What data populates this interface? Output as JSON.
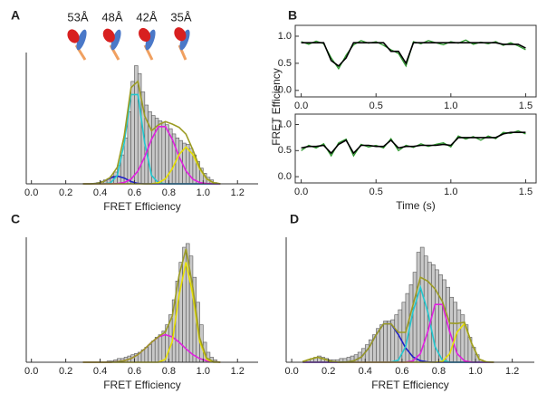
{
  "chart_data": [
    {
      "type": "histogram",
      "panel": "A",
      "xlabel": "FRET Efficiency",
      "annotations": [
        "53Å",
        "48Å",
        "42Å",
        "35Å"
      ],
      "xlim": [
        -0.03,
        1.32
      ],
      "xticks": [
        {
          "value": 0,
          "label": "0.0"
        },
        0.2,
        0.4,
        0.6,
        0.8,
        {
          "value": 1,
          "label": "1.0"
        },
        1.2
      ],
      "ylim": [
        0,
        100
      ],
      "bar_color": "#c8c8c8",
      "bins": [
        0.38,
        0.4,
        0.42,
        0.44,
        0.46,
        0.48,
        0.5,
        0.52,
        0.54,
        0.56,
        0.58,
        0.6,
        0.62,
        0.64,
        0.66,
        0.68,
        0.7,
        0.72,
        0.74,
        0.76,
        0.78,
        0.8,
        0.82,
        0.84,
        0.86,
        0.88,
        0.9,
        0.92,
        0.94,
        0.96,
        0.98,
        1,
        1.02,
        1.04,
        1.06,
        1.08
      ],
      "counts": [
        1,
        2,
        3,
        4,
        6,
        9,
        14,
        22,
        35,
        55,
        78,
        90,
        84,
        70,
        60,
        55,
        52,
        50,
        48,
        47,
        45,
        42,
        38,
        35,
        33,
        31,
        30,
        27,
        22,
        17,
        12,
        8,
        5,
        3,
        1
      ],
      "fit_x": [
        0.3,
        0.34,
        0.38,
        0.42,
        0.46,
        0.5,
        0.54,
        0.58,
        0.62,
        0.66,
        0.7,
        0.74,
        0.78,
        0.82,
        0.86,
        0.9,
        0.94,
        0.98,
        1.02,
        1.06,
        1.1
      ],
      "series": [
        {
          "color": "#1f1fc8",
          "values": [
            0,
            0,
            0.3,
            1.7,
            4.4,
            6,
            4.4,
            1.7,
            0.3,
            0,
            0,
            0,
            0,
            0,
            0,
            0,
            0,
            0,
            0,
            0,
            0
          ]
        },
        {
          "color": "#22c8d0",
          "values": [
            0,
            0,
            0,
            0,
            0.6,
            6.4,
            31,
            68,
            68,
            31,
            6.4,
            0.6,
            0,
            0,
            0,
            0,
            0,
            0,
            0,
            0,
            0
          ]
        },
        {
          "color": "#e020e0",
          "values": [
            0,
            0,
            0,
            0,
            0,
            0.2,
            1,
            3.6,
            9.8,
            20.6,
            34,
            43.6,
            43.6,
            34,
            20.6,
            9.8,
            3.6,
            1,
            0.2,
            0,
            0
          ]
        },
        {
          "color": "#e8e000",
          "values": [
            0,
            0,
            0,
            0,
            0,
            0,
            0,
            0,
            0,
            0,
            0.1,
            0.8,
            3.8,
            11.5,
            22.4,
            28,
            22.4,
            11.5,
            3.8,
            0.8,
            0.1
          ]
        },
        {
          "color": "#9c9c24",
          "values": [
            0,
            0,
            0.3,
            1.7,
            5,
            12.6,
            36.4,
            73.3,
            78.1,
            51.6,
            40.5,
            45,
            47.4,
            45.5,
            43,
            37.8,
            26,
            12.5,
            4,
            0.8,
            0.1
          ]
        }
      ]
    },
    {
      "type": "line",
      "panel": "B",
      "xlim": [
        -0.04,
        1.57
      ],
      "xticks": [
        {
          "value": 0,
          "label": "0.0"
        },
        0.5,
        {
          "value": 1,
          "label": "1.0"
        },
        1.5
      ],
      "ylim": [
        -0.12,
        1.2
      ],
      "yticks": [
        {
          "value": 0,
          "label": "0.0"
        },
        0.5,
        {
          "value": 1,
          "label": "1.0"
        }
      ],
      "x": [
        0,
        0.05,
        0.1,
        0.15,
        0.2,
        0.25,
        0.3,
        0.35,
        0.4,
        0.45,
        0.5,
        0.55,
        0.6,
        0.65,
        0.7,
        0.75,
        0.8,
        0.85,
        0.9,
        0.95,
        1,
        1.05,
        1.1,
        1.15,
        1.2,
        1.25,
        1.3,
        1.35,
        1.4,
        1.45,
        1.5
      ],
      "series": [
        {
          "color": "#2e9a2e",
          "values": [
            0.9,
            0.85,
            0.91,
            0.86,
            0.6,
            0.4,
            0.65,
            0.84,
            0.92,
            0.87,
            0.9,
            0.83,
            0.75,
            0.68,
            0.45,
            0.9,
            0.86,
            0.92,
            0.88,
            0.84,
            0.9,
            0.87,
            0.93,
            0.85,
            0.89,
            0.86,
            0.9,
            0.83,
            0.88,
            0.82,
            0.75
          ]
        },
        {
          "color": "#000000",
          "values": [
            0.88,
            0.88,
            0.88,
            0.88,
            0.55,
            0.45,
            0.6,
            0.88,
            0.88,
            0.88,
            0.88,
            0.88,
            0.72,
            0.72,
            0.5,
            0.88,
            0.88,
            0.88,
            0.88,
            0.88,
            0.88,
            0.88,
            0.88,
            0.88,
            0.88,
            0.88,
            0.88,
            0.85,
            0.85,
            0.85,
            0.78
          ]
        }
      ]
    },
    {
      "type": "line",
      "ylabel": "FRET Efficiency",
      "xlabel": "Time (s)",
      "xlim": [
        -0.04,
        1.57
      ],
      "xticks": [
        {
          "value": 0,
          "label": "0.0"
        },
        0.5,
        {
          "value": 1,
          "label": "1.0"
        },
        1.5
      ],
      "ylim": [
        -0.12,
        1.2
      ],
      "yticks": [
        {
          "value": 0,
          "label": "0.0"
        },
        0.5,
        {
          "value": 1,
          "label": "1.0"
        }
      ],
      "x": [
        0,
        0.05,
        0.1,
        0.15,
        0.2,
        0.25,
        0.3,
        0.35,
        0.4,
        0.45,
        0.5,
        0.55,
        0.6,
        0.65,
        0.7,
        0.75,
        0.8,
        0.85,
        0.9,
        0.95,
        1,
        1.05,
        1.1,
        1.15,
        1.2,
        1.25,
        1.3,
        1.35,
        1.4,
        1.45,
        1.5
      ],
      "series": [
        {
          "color": "#2e9a2e",
          "values": [
            0.5,
            0.6,
            0.55,
            0.63,
            0.4,
            0.65,
            0.72,
            0.4,
            0.62,
            0.57,
            0.6,
            0.55,
            0.73,
            0.5,
            0.6,
            0.56,
            0.63,
            0.58,
            0.62,
            0.65,
            0.57,
            0.78,
            0.72,
            0.77,
            0.7,
            0.78,
            0.73,
            0.85,
            0.83,
            0.88,
            0.82
          ]
        },
        {
          "color": "#000000",
          "values": [
            0.55,
            0.58,
            0.58,
            0.6,
            0.45,
            0.62,
            0.7,
            0.45,
            0.6,
            0.6,
            0.58,
            0.58,
            0.7,
            0.55,
            0.58,
            0.58,
            0.6,
            0.6,
            0.6,
            0.62,
            0.6,
            0.75,
            0.75,
            0.75,
            0.75,
            0.75,
            0.75,
            0.82,
            0.85,
            0.85,
            0.85
          ]
        }
      ]
    },
    {
      "type": "histogram",
      "panel": "C",
      "xlabel": "FRET Efficiency",
      "xlim": [
        -0.03,
        1.32
      ],
      "xticks": [
        {
          "value": 0,
          "label": "0.0"
        },
        0.2,
        0.4,
        0.6,
        0.8,
        {
          "value": 1,
          "label": "1.0"
        },
        1.2
      ],
      "ylim": [
        0,
        100
      ],
      "bar_color": "#c8c8c8",
      "bins": [
        0.44,
        0.46,
        0.48,
        0.5,
        0.52,
        0.54,
        0.56,
        0.58,
        0.6,
        0.62,
        0.64,
        0.66,
        0.68,
        0.7,
        0.72,
        0.74,
        0.76,
        0.78,
        0.8,
        0.82,
        0.84,
        0.86,
        0.88,
        0.9,
        0.92,
        0.94,
        0.96,
        0.98,
        1,
        1.02,
        1.04,
        1.06,
        1.08
      ],
      "counts": [
        1,
        1,
        2,
        3,
        3,
        4,
        5,
        6,
        7,
        8,
        10,
        12,
        14,
        17,
        20,
        22,
        25,
        30,
        38,
        50,
        65,
        80,
        92,
        95,
        85,
        68,
        48,
        30,
        16,
        8,
        4,
        2
      ],
      "fit_x": [
        0.3,
        0.34,
        0.38,
        0.42,
        0.46,
        0.5,
        0.54,
        0.58,
        0.62,
        0.66,
        0.7,
        0.74,
        0.78,
        0.82,
        0.86,
        0.9,
        0.94,
        0.98,
        1.02,
        1.06,
        1.1
      ],
      "series": [
        {
          "color": "#e020e0",
          "values": [
            0,
            0,
            0,
            0,
            0.1,
            0.4,
            1.2,
            3,
            6.1,
            10.7,
            16,
            20.3,
            22,
            20.3,
            16,
            10.7,
            6.1,
            3,
            1.2,
            0.4,
            0.1
          ]
        },
        {
          "color": "#e8e000",
          "values": [
            0,
            0,
            0,
            0,
            0,
            0,
            0,
            0,
            0,
            0,
            0,
            0.1,
            2.3,
            16.5,
            53.9,
            80,
            53.9,
            16.5,
            2.3,
            0.1,
            0
          ]
        },
        {
          "color": "#9c9c24",
          "values": [
            0,
            0,
            0,
            0,
            0.1,
            0.4,
            1.2,
            3,
            6.1,
            10.7,
            16,
            20.4,
            24.3,
            36.8,
            69.9,
            90.7,
            60,
            19.5,
            3.5,
            0.5,
            0.1
          ]
        }
      ]
    },
    {
      "type": "histogram",
      "panel": "D",
      "xlabel": "FRET Efficiency",
      "xlim": [
        -0.03,
        1.32
      ],
      "xticks": [
        {
          "value": 0,
          "label": "0.0"
        },
        0.2,
        0.4,
        0.6,
        0.8,
        {
          "value": 1,
          "label": "1.0"
        },
        1.2
      ],
      "ylim": [
        0,
        100
      ],
      "bar_color": "#c8c8c8",
      "bins": [
        0.06,
        0.08,
        0.1,
        0.12,
        0.14,
        0.16,
        0.18,
        0.2,
        0.22,
        0.24,
        0.26,
        0.28,
        0.3,
        0.32,
        0.34,
        0.36,
        0.38,
        0.4,
        0.42,
        0.44,
        0.46,
        0.48,
        0.5,
        0.52,
        0.54,
        0.56,
        0.58,
        0.6,
        0.62,
        0.64,
        0.66,
        0.68,
        0.7,
        0.72,
        0.74,
        0.76,
        0.78,
        0.8,
        0.82,
        0.84,
        0.86,
        0.88,
        0.9,
        0.92,
        0.94,
        0.96,
        0.98,
        1,
        1.02,
        1.04
      ],
      "counts": [
        1,
        2,
        3,
        4,
        5,
        4,
        3,
        2,
        2,
        2,
        3,
        3,
        4,
        5,
        6,
        8,
        11,
        14,
        18,
        22,
        27,
        30,
        33,
        33,
        34,
        38,
        42,
        48,
        55,
        62,
        72,
        88,
        92,
        85,
        80,
        78,
        74,
        70,
        66,
        60,
        52,
        48,
        42,
        38,
        30,
        20,
        12,
        6,
        2
      ],
      "fit_x": [
        0.06,
        0.1,
        0.14,
        0.18,
        0.22,
        0.26,
        0.3,
        0.34,
        0.38,
        0.42,
        0.46,
        0.5,
        0.54,
        0.58,
        0.62,
        0.66,
        0.7,
        0.74,
        0.78,
        0.82,
        0.86,
        0.9,
        0.94,
        0.98,
        1.02,
        1.06,
        1.1
      ],
      "series": [
        {
          "color": "#1f1fc8",
          "values": [
            0,
            0,
            0,
            0,
            0,
            0,
            0.2,
            1.2,
            4.3,
            11.5,
            22.2,
            30.7,
            30.7,
            22.2,
            11.5,
            4.3,
            1.2,
            0.2,
            0,
            0,
            0,
            0,
            0,
            0,
            0,
            0,
            0
          ]
        },
        {
          "color": "#22c8d0",
          "values": [
            0,
            0,
            0,
            0,
            0,
            0,
            0,
            0,
            0,
            0,
            0,
            0,
            0.1,
            1.7,
            12.4,
            40.4,
            60,
            40.4,
            12.4,
            1.7,
            0.1,
            0,
            0,
            0,
            0,
            0,
            0
          ]
        },
        {
          "color": "#e020e0",
          "values": [
            0,
            0,
            0,
            0,
            0,
            0,
            0,
            0,
            0,
            0,
            0,
            0,
            0,
            0,
            0.1,
            1,
            6.8,
            24.3,
            46.2,
            46.2,
            24.3,
            6.8,
            1,
            0.1,
            0,
            0,
            0
          ]
        },
        {
          "color": "#e8e000",
          "values": [
            0.5,
            2.4,
            4,
            2.4,
            0.5,
            0,
            0,
            0,
            0,
            0,
            0,
            0,
            0,
            0,
            0,
            0,
            0,
            0,
            0,
            0.7,
            6.9,
            24.2,
            31,
            14.7,
            2.5,
            0.2,
            0
          ]
        },
        {
          "color": "#9c9c24",
          "values": [
            0.5,
            2.4,
            4,
            2.4,
            0.5,
            0,
            0.2,
            1.2,
            4.3,
            11.5,
            22.2,
            30.7,
            30.8,
            23.9,
            24,
            45.7,
            68,
            64.9,
            58.6,
            48.6,
            31.3,
            31,
            32,
            14.8,
            2.5,
            0.2,
            0
          ]
        }
      ]
    }
  ]
}
